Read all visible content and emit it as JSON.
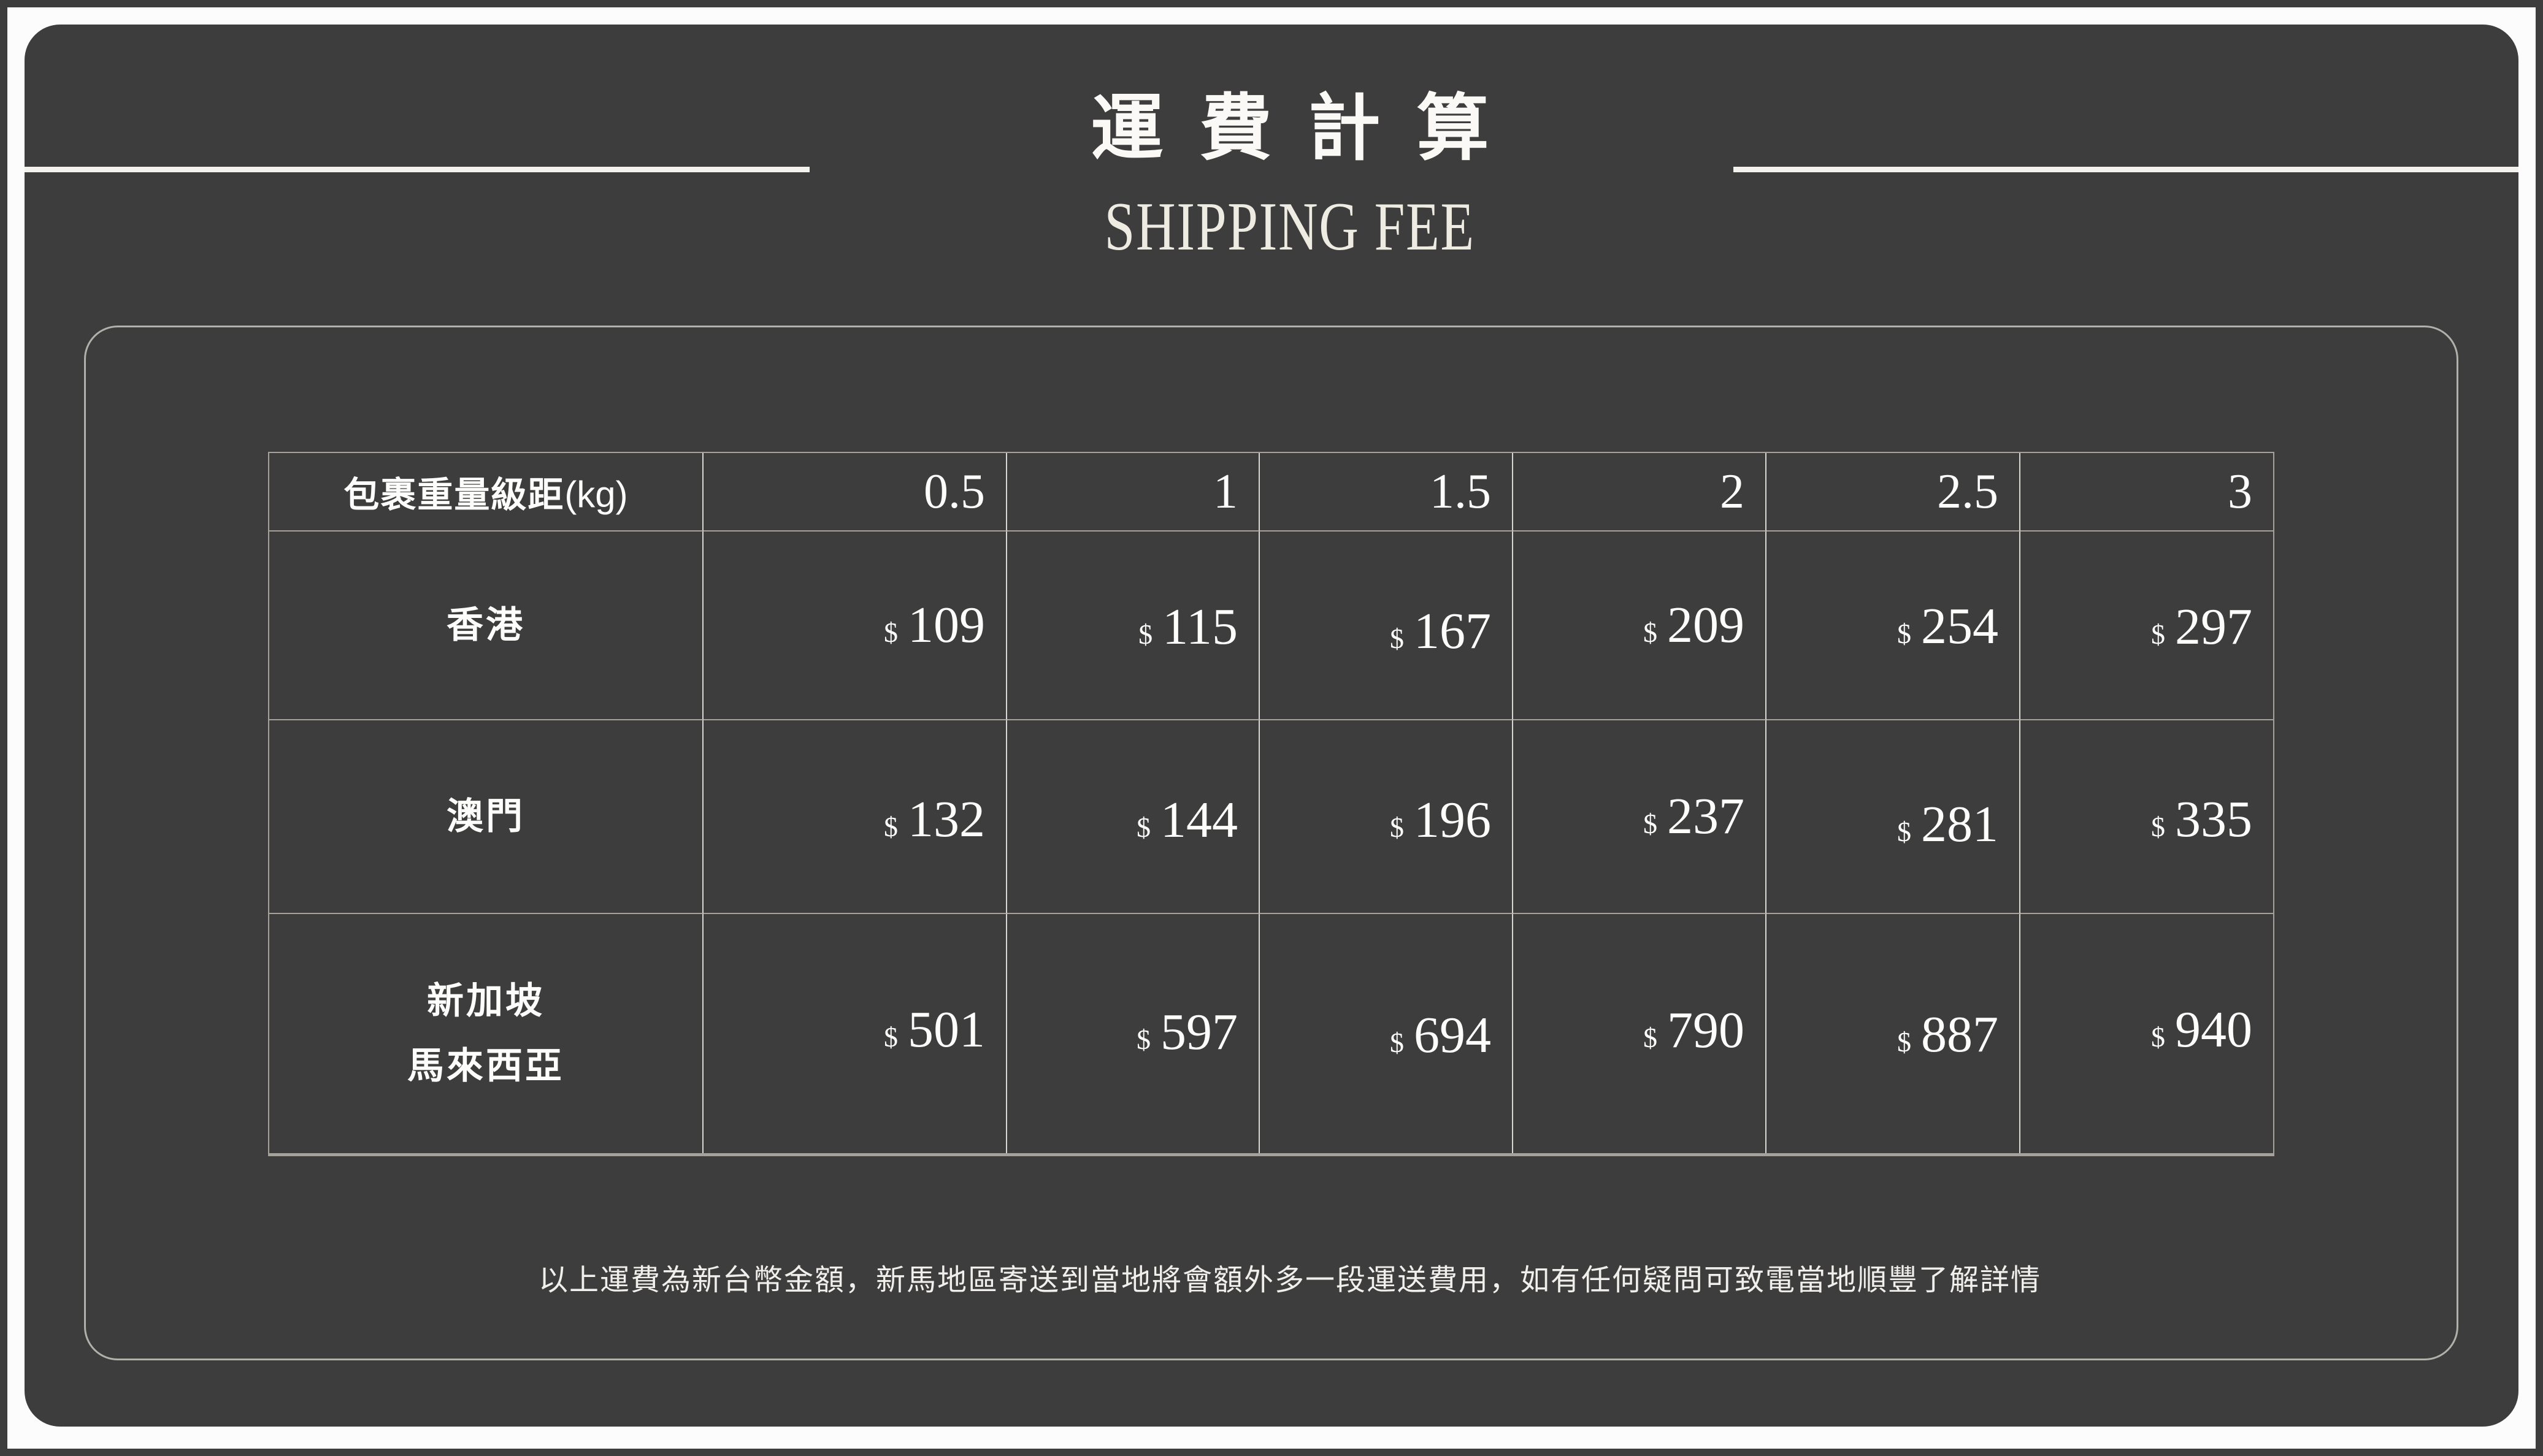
{
  "header": {
    "title": "運費計算",
    "subtitle": "SHIPPING FEE"
  },
  "table": {
    "currency_symbol": "$",
    "header": {
      "label_cjk": "包裹重量級距",
      "label_unit": "(kg)",
      "weights": [
        "0.5",
        "1",
        "1.5",
        "2",
        "2.5",
        "3"
      ]
    },
    "rows": [
      {
        "region_lines": [
          "香港"
        ],
        "fees": [
          "109",
          "115",
          "167",
          "209",
          "254",
          "297"
        ]
      },
      {
        "region_lines": [
          "澳門"
        ],
        "fees": [
          "132",
          "144",
          "196",
          "237",
          "281",
          "335"
        ]
      },
      {
        "region_lines": [
          "新加坡",
          "馬來西亞"
        ],
        "fees": [
          "501",
          "597",
          "694",
          "790",
          "887",
          "940"
        ]
      }
    ]
  },
  "footnote": {
    "text": "以上運費為新台幣金額，新馬地區寄送到當地將會額外多一段運送費用，如有任何疑問可致電當地順豐了解詳情"
  },
  "colors": {
    "background": "#3e3d3d",
    "frame": "#fcfcfc",
    "table_line_horizontal": "#a6a199",
    "table_line_vertical": "#d8d6d1",
    "panel_outline": "#b2b0ab",
    "text": "#fdfdfb",
    "subtitle_text": "#eeebe2"
  },
  "chart_data": {
    "type": "table",
    "title": "運費計算 SHIPPING FEE",
    "x_header": "包裹重量級距(kg)",
    "categories": [
      0.5,
      1,
      1.5,
      2,
      2.5,
      3
    ],
    "series": [
      {
        "name": "香港",
        "values": [
          109,
          115,
          167,
          209,
          254,
          297
        ]
      },
      {
        "name": "澳門",
        "values": [
          132,
          144,
          196,
          237,
          281,
          335
        ]
      },
      {
        "name": "新加坡 馬來西亞",
        "values": [
          501,
          597,
          694,
          790,
          887,
          940
        ]
      }
    ],
    "currency": "NTD (新台幣)",
    "note": "以上運費為新台幣金額，新馬地區寄送到當地將會額外多一段運送費用，如有任何疑問可致電當地順豐了解詳情"
  }
}
